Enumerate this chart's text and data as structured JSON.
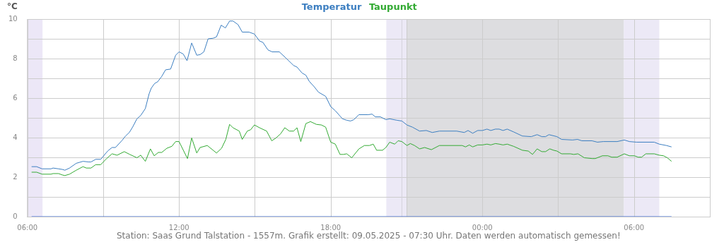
{
  "chart_data": {
    "type": "line",
    "ylabel": "°C",
    "legend": "top",
    "grid": true,
    "marker": "none",
    "line_style": "solid",
    "xlim": [
      "2025-05-08T06:00",
      "2025-05-09T09:00"
    ],
    "xticks": [
      {
        "value": "2025-05-08T06:00",
        "label": "06:00"
      },
      {
        "value": "2025-05-08T09:00",
        "label": null
      },
      {
        "value": "2025-05-08T12:00",
        "label": "12:00"
      },
      {
        "value": "2025-05-08T15:00",
        "label": null
      },
      {
        "value": "2025-05-08T18:00",
        "label": "18:00"
      },
      {
        "value": "2025-05-08T21:00",
        "label": null
      },
      {
        "value": "2025-05-09T00:00",
        "label": "00:00"
      },
      {
        "value": "2025-05-09T03:00",
        "label": null
      },
      {
        "value": "2025-05-09T06:00",
        "label": "06:00"
      },
      {
        "value": "2025-05-09T09:00",
        "label": null
      }
    ],
    "ylim": [
      0,
      10
    ],
    "yticks": [
      0,
      {
        "value": 1,
        "label": null
      },
      2,
      {
        "value": 3,
        "label": null
      },
      4,
      {
        "value": 5,
        "label": null
      },
      6,
      {
        "value": 7,
        "label": null
      },
      8,
      {
        "value": 9,
        "label": null
      },
      10
    ],
    "bands": [
      {
        "axis": "x",
        "from": "2025-05-08T06:00",
        "to": "2025-05-08T06:36",
        "color": "#ece7f7"
      },
      {
        "axis": "x",
        "from": "2025-05-08T20:12",
        "to": "2025-05-08T21:00",
        "color": "#ece9f6"
      },
      {
        "axis": "x",
        "from": "2025-05-08T21:00",
        "to": "2025-05-09T05:36",
        "color": "#dddde0"
      },
      {
        "axis": "x",
        "from": "2025-05-09T05:36",
        "to": "2025-05-09T07:00",
        "color": "#ece9f6"
      }
    ],
    "ref_lines": [
      {
        "axis": "x",
        "value": "2025-05-08T20:49",
        "color": "#d4d2dc"
      }
    ],
    "annotations": [
      "Station: Saas Grund Talstation - 1557m. Grafik erstellt: 09.05.2025 - 07:30 Uhr. Daten werden automatisch gemessen!"
    ],
    "series": [
      {
        "name": "Temperatur",
        "color": "#3d7fc1",
        "x": [
          "2025-05-08T06:10",
          "2025-05-08T06:22",
          "2025-05-08T06:35",
          "2025-05-08T06:56",
          "2025-05-08T07:01",
          "2025-05-08T07:14",
          "2025-05-08T07:23",
          "2025-05-08T07:29",
          "2025-05-08T07:40",
          "2025-05-08T07:56",
          "2025-05-08T08:12",
          "2025-05-08T08:25",
          "2025-05-08T08:31",
          "2025-05-08T08:42",
          "2025-05-08T08:54",
          "2025-05-08T09:11",
          "2025-05-08T09:21",
          "2025-05-08T09:29",
          "2025-05-08T09:44",
          "2025-05-08T09:53",
          "2025-05-08T10:02",
          "2025-05-08T10:10",
          "2025-05-08T10:20",
          "2025-05-08T10:29",
          "2025-05-08T10:40",
          "2025-05-08T10:49",
          "2025-05-08T10:54",
          "2025-05-08T11:02",
          "2025-05-08T11:09",
          "2025-05-08T11:19",
          "2025-05-08T11:28",
          "2025-05-08T11:40",
          "2025-05-08T11:52",
          "2025-05-08T12:00",
          "2025-05-08T12:10",
          "2025-05-08T12:19",
          "2025-05-08T12:30",
          "2025-05-08T12:42",
          "2025-05-08T12:50",
          "2025-05-08T12:59",
          "2025-05-08T13:09",
          "2025-05-08T13:21",
          "2025-05-08T13:29",
          "2025-05-08T13:40",
          "2025-05-08T13:50",
          "2025-05-08T14:00",
          "2025-05-08T14:08",
          "2025-05-08T14:20",
          "2025-05-08T14:30",
          "2025-05-08T14:46",
          "2025-05-08T14:59",
          "2025-05-08T15:11",
          "2025-05-08T15:19",
          "2025-05-08T15:31",
          "2025-05-08T15:41",
          "2025-05-08T15:58",
          "2025-05-08T16:15",
          "2025-05-08T16:32",
          "2025-05-08T16:40",
          "2025-05-08T16:52",
          "2025-05-08T17:01",
          "2025-05-08T17:09",
          "2025-05-08T17:21",
          "2025-05-08T17:31",
          "2025-05-08T17:48",
          "2025-05-08T18:00",
          "2025-05-08T18:11",
          "2025-05-08T18:28",
          "2025-05-08T18:38",
          "2025-05-08T18:47",
          "2025-05-08T18:55",
          "2025-05-08T19:07",
          "2025-05-08T19:29",
          "2025-05-08T19:38",
          "2025-05-08T19:46",
          "2025-05-08T19:58",
          "2025-05-08T20:11",
          "2025-05-08T20:20",
          "2025-05-08T20:37",
          "2025-05-08T20:49",
          "2025-05-08T21:01",
          "2025-05-08T21:14",
          "2025-05-08T21:31",
          "2025-05-08T21:47",
          "2025-05-08T22:01",
          "2025-05-08T22:18",
          "2025-05-08T22:59",
          "2025-05-08T23:17",
          "2025-05-08T23:26",
          "2025-05-08T23:37",
          "2025-05-08T23:49",
          "2025-05-09T00:00",
          "2025-05-09T00:11",
          "2025-05-09T00:20",
          "2025-05-09T00:31",
          "2025-05-09T00:40",
          "2025-05-09T00:49",
          "2025-05-09T00:59",
          "2025-05-09T01:14",
          "2025-05-09T01:35",
          "2025-05-09T01:56",
          "2025-05-09T02:10",
          "2025-05-09T02:21",
          "2025-05-09T02:30",
          "2025-05-09T02:38",
          "2025-05-09T02:57",
          "2025-05-09T03:08",
          "2025-05-09T03:34",
          "2025-05-09T03:46",
          "2025-05-09T03:56",
          "2025-05-09T04:20",
          "2025-05-09T04:33",
          "2025-05-09T04:47",
          "2025-05-09T05:20",
          "2025-05-09T05:37",
          "2025-05-09T05:49",
          "2025-05-09T06:06",
          "2025-05-09T06:48",
          "2025-05-09T07:00",
          "2025-05-09T07:17",
          "2025-05-09T07:29"
        ],
        "values": [
          2.53,
          2.53,
          2.42,
          2.42,
          2.46,
          2.42,
          2.39,
          2.35,
          2.46,
          2.7,
          2.8,
          2.77,
          2.77,
          2.9,
          2.9,
          3.33,
          3.5,
          3.5,
          3.84,
          4.08,
          4.26,
          4.54,
          4.95,
          5.12,
          5.47,
          6.22,
          6.5,
          6.74,
          6.82,
          7.1,
          7.43,
          7.47,
          8.17,
          8.34,
          8.23,
          7.89,
          8.79,
          8.17,
          8.2,
          8.34,
          9.0,
          9.03,
          9.1,
          9.69,
          9.55,
          9.9,
          9.9,
          9.72,
          9.34,
          9.34,
          9.24,
          8.89,
          8.82,
          8.44,
          8.34,
          8.34,
          8.0,
          7.65,
          7.57,
          7.27,
          7.16,
          6.85,
          6.57,
          6.3,
          6.09,
          5.57,
          5.36,
          4.95,
          4.88,
          4.84,
          4.91,
          5.16,
          5.16,
          5.19,
          5.05,
          5.05,
          4.91,
          4.95,
          4.88,
          4.84,
          4.64,
          4.53,
          4.33,
          4.36,
          4.26,
          4.33,
          4.33,
          4.26,
          4.36,
          4.22,
          4.36,
          4.36,
          4.43,
          4.36,
          4.43,
          4.43,
          4.36,
          4.43,
          4.29,
          4.08,
          4.05,
          4.15,
          4.05,
          4.05,
          4.15,
          4.05,
          3.91,
          3.88,
          3.91,
          3.84,
          3.84,
          3.77,
          3.8,
          3.8,
          3.88,
          3.8,
          3.77,
          3.77,
          3.67,
          3.6,
          3.53
        ]
      },
      {
        "name": "Taupunkt",
        "color": "#33aa33",
        "x": [
          "2025-05-08T06:10",
          "2025-05-08T06:22",
          "2025-05-08T06:35",
          "2025-05-08T06:56",
          "2025-05-08T07:01",
          "2025-05-08T07:14",
          "2025-05-08T07:23",
          "2025-05-08T07:29",
          "2025-05-08T07:40",
          "2025-05-08T07:56",
          "2025-05-08T08:12",
          "2025-05-08T08:20",
          "2025-05-08T08:31",
          "2025-05-08T08:42",
          "2025-05-08T08:54",
          "2025-05-08T09:08",
          "2025-05-08T09:21",
          "2025-05-08T09:33",
          "2025-05-08T09:50",
          "2025-05-08T10:03",
          "2025-05-08T10:20",
          "2025-05-08T10:29",
          "2025-05-08T10:40",
          "2025-05-08T10:52",
          "2025-05-08T11:01",
          "2025-05-08T11:11",
          "2025-05-08T11:19",
          "2025-05-08T11:31",
          "2025-05-08T11:43",
          "2025-05-08T11:52",
          "2025-05-08T12:00",
          "2025-05-08T12:20",
          "2025-05-08T12:30",
          "2025-05-08T12:42",
          "2025-05-08T12:50",
          "2025-05-08T13:07",
          "2025-05-08T13:29",
          "2025-05-08T13:41",
          "2025-05-08T13:51",
          "2025-05-08T14:00",
          "2025-05-08T14:08",
          "2025-05-08T14:23",
          "2025-05-08T14:30",
          "2025-05-08T14:42",
          "2025-05-08T14:50",
          "2025-05-08T14:59",
          "2025-05-08T15:11",
          "2025-05-08T15:28",
          "2025-05-08T15:40",
          "2025-05-08T15:50",
          "2025-05-08T16:01",
          "2025-05-08T16:11",
          "2025-05-08T16:22",
          "2025-05-08T16:32",
          "2025-05-08T16:40",
          "2025-05-08T16:49",
          "2025-05-08T17:01",
          "2025-05-08T17:12",
          "2025-05-08T17:26",
          "2025-05-08T17:38",
          "2025-05-08T17:48",
          "2025-05-08T18:00",
          "2025-05-08T18:11",
          "2025-05-08T18:22",
          "2025-05-08T18:30",
          "2025-05-08T18:38",
          "2025-05-08T18:50",
          "2025-05-08T19:07",
          "2025-05-08T19:20",
          "2025-05-08T19:32",
          "2025-05-08T19:41",
          "2025-05-08T19:49",
          "2025-05-08T20:03",
          "2025-05-08T20:11",
          "2025-05-08T20:20",
          "2025-05-08T20:32",
          "2025-05-08T20:40",
          "2025-05-08T20:49",
          "2025-05-08T21:01",
          "2025-05-08T21:09",
          "2025-05-08T21:19",
          "2025-05-08T21:31",
          "2025-05-08T21:43",
          "2025-05-08T21:59",
          "2025-05-08T22:18",
          "2025-05-08T23:12",
          "2025-05-08T23:20",
          "2025-05-08T23:29",
          "2025-05-08T23:37",
          "2025-05-08T23:49",
          "2025-05-09T00:00",
          "2025-05-09T00:11",
          "2025-05-09T00:20",
          "2025-05-09T00:31",
          "2025-05-09T00:40",
          "2025-05-09T00:49",
          "2025-05-09T00:59",
          "2025-05-09T01:14",
          "2025-05-09T01:35",
          "2025-05-09T01:49",
          "2025-05-09T01:59",
          "2025-05-09T02:10",
          "2025-05-09T02:21",
          "2025-05-09T02:30",
          "2025-05-09T02:40",
          "2025-05-09T02:49",
          "2025-05-09T02:57",
          "2025-05-09T03:08",
          "2025-05-09T03:29",
          "2025-05-09T03:37",
          "2025-05-09T03:47",
          "2025-05-09T04:02",
          "2025-05-09T04:21",
          "2025-05-09T04:28",
          "2025-05-09T04:45",
          "2025-05-09T04:58",
          "2025-05-09T05:07",
          "2025-05-09T05:20",
          "2025-05-09T05:37",
          "2025-05-09T05:49",
          "2025-05-09T06:01",
          "2025-05-09T06:10",
          "2025-05-09T06:18",
          "2025-05-09T06:28",
          "2025-05-09T06:48",
          "2025-05-09T07:00",
          "2025-05-09T07:10",
          "2025-05-09T07:19",
          "2025-05-09T07:29"
        ],
        "values": [
          2.25,
          2.25,
          2.15,
          2.15,
          2.18,
          2.18,
          2.11,
          2.08,
          2.15,
          2.35,
          2.53,
          2.46,
          2.46,
          2.63,
          2.63,
          2.94,
          3.18,
          3.11,
          3.29,
          3.15,
          2.98,
          3.11,
          2.8,
          3.43,
          3.08,
          3.25,
          3.25,
          3.46,
          3.56,
          3.8,
          3.8,
          2.94,
          3.98,
          3.22,
          3.5,
          3.6,
          3.22,
          3.46,
          3.91,
          4.67,
          4.5,
          4.33,
          3.91,
          4.33,
          4.4,
          4.64,
          4.5,
          4.33,
          3.84,
          3.98,
          4.19,
          4.5,
          4.33,
          4.33,
          4.5,
          3.8,
          4.71,
          4.81,
          4.67,
          4.64,
          4.53,
          3.77,
          3.67,
          3.15,
          3.15,
          3.18,
          2.98,
          3.43,
          3.6,
          3.6,
          3.67,
          3.36,
          3.36,
          3.5,
          3.77,
          3.67,
          3.84,
          3.8,
          3.6,
          3.7,
          3.6,
          3.43,
          3.5,
          3.39,
          3.6,
          3.6,
          3.53,
          3.63,
          3.53,
          3.63,
          3.63,
          3.67,
          3.63,
          3.7,
          3.67,
          3.63,
          3.67,
          3.56,
          3.36,
          3.32,
          3.15,
          3.43,
          3.29,
          3.29,
          3.43,
          3.36,
          3.32,
          3.18,
          3.18,
          3.15,
          3.18,
          2.98,
          2.94,
          2.94,
          3.08,
          3.08,
          3.01,
          3.01,
          3.18,
          3.08,
          3.08,
          3.01,
          3.01,
          3.18,
          3.18,
          3.11,
          3.08,
          2.98,
          2.8
        ]
      },
      {
        "color": "#3366dd",
        "x": [
          "2025-05-08T06:10",
          "2025-05-09T07:29"
        ],
        "values": [
          0,
          0
        ]
      }
    ]
  }
}
